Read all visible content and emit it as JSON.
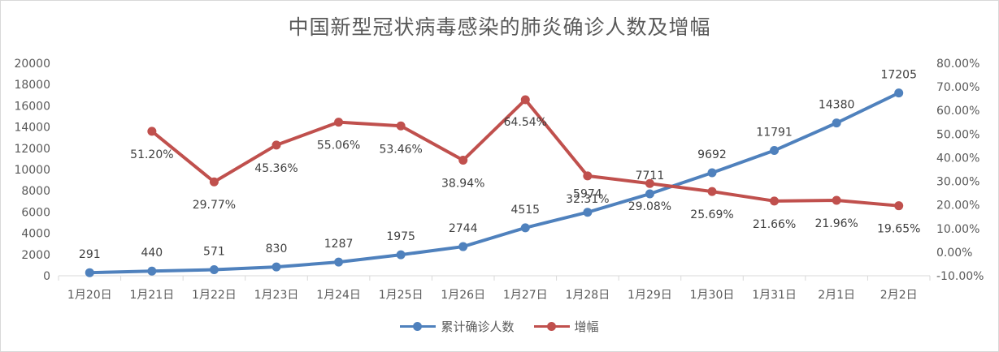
{
  "chart_data": {
    "type": "line",
    "title": "中国新型冠状病毒感染的肺炎确诊人数及增幅",
    "categories": [
      "1月20日",
      "1月21日",
      "1月22日",
      "1月23日",
      "1月24日",
      "1月25日",
      "1月26日",
      "1月27日",
      "1月28日",
      "1月29日",
      "1月30日",
      "1月31日",
      "2月1日",
      "2月2日"
    ],
    "series": [
      {
        "name": "累计确诊人数",
        "axis": "left",
        "color": "#4f81bd",
        "values": [
          291,
          440,
          571,
          830,
          1287,
          1975,
          2744,
          4515,
          5974,
          7711,
          9692,
          11791,
          14380,
          17205
        ],
        "labels": [
          "291",
          "440",
          "571",
          "830",
          "1287",
          "1975",
          "2744",
          "4515",
          "5974",
          "7711",
          "9692",
          "11791",
          "14380",
          "17205"
        ]
      },
      {
        "name": "增幅",
        "axis": "right",
        "color": "#c0504d",
        "values": [
          null,
          51.2,
          29.77,
          45.36,
          55.06,
          53.46,
          38.94,
          64.54,
          32.31,
          29.08,
          25.69,
          21.66,
          21.96,
          19.65
        ],
        "labels": [
          null,
          "51.20%",
          "29.77%",
          "45.36%",
          "55.06%",
          "53.46%",
          "38.94%",
          "64.54%",
          "32.31%",
          "29.08%",
          "25.69%",
          "21.66%",
          "21.96%",
          "19.65%"
        ]
      }
    ],
    "y_left": {
      "min": 0,
      "max": 20000,
      "ticks": [
        "0",
        "2000",
        "4000",
        "6000",
        "8000",
        "10000",
        "12000",
        "14000",
        "16000",
        "18000",
        "20000"
      ]
    },
    "y_right": {
      "min": -10,
      "max": 80,
      "ticks": [
        "-10.00%",
        "0.00%",
        "10.00%",
        "20.00%",
        "30.00%",
        "40.00%",
        "50.00%",
        "60.00%",
        "70.00%",
        "80.00%"
      ]
    },
    "grid": false,
    "legend": "bottom"
  }
}
